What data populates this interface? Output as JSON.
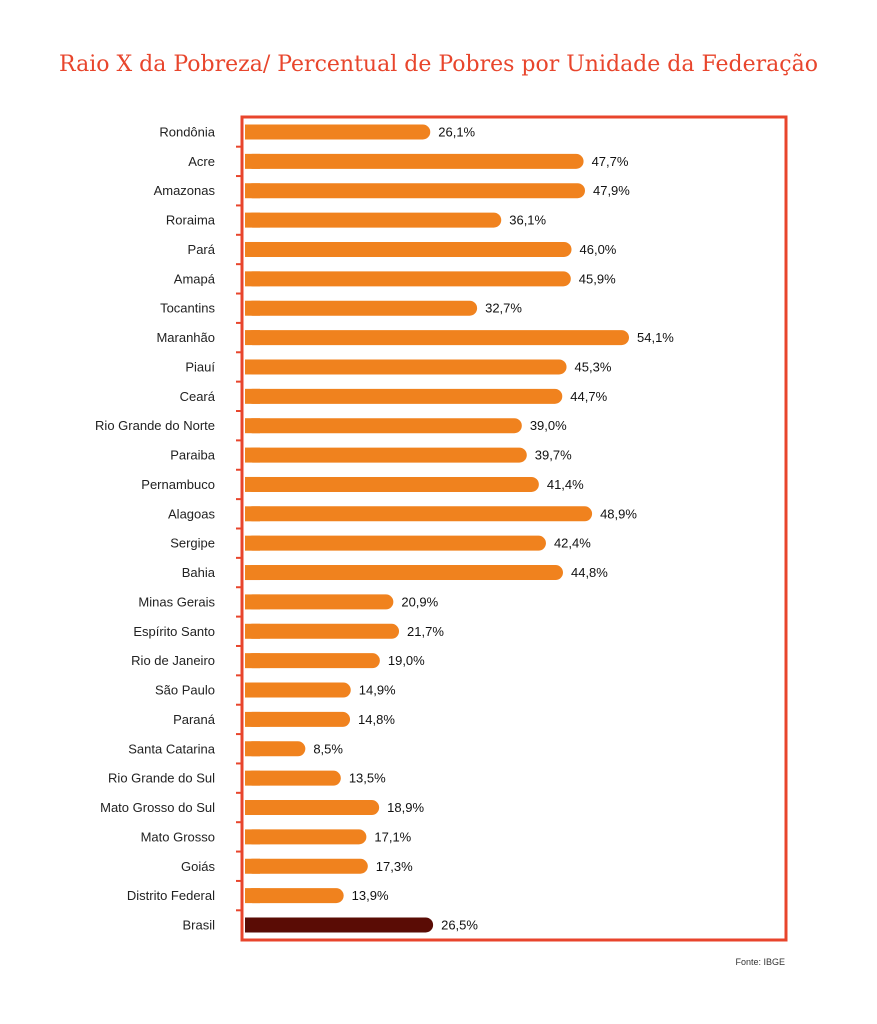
{
  "chart_data": {
    "type": "bar",
    "orientation": "horizontal",
    "title": "Raio X da Pobreza/ Percentual de Pobres por Unidade da Federação",
    "categories": [
      "Rondônia",
      "Acre",
      "Amazonas",
      "Roraima",
      "Pará",
      "Amapá",
      "Tocantins",
      "Maranhão",
      "Piauí",
      "Ceará",
      "Rio Grande do Norte",
      "Paraiba",
      "Pernambuco",
      "Alagoas",
      "Sergipe",
      "Bahia",
      "Minas Gerais",
      "Espírito Santo",
      "Rio de Janeiro",
      "São Paulo",
      "Paraná",
      "Santa Catarina",
      "Rio Grande do Sul",
      "Mato Grosso do Sul",
      "Mato Grosso",
      "Goiás",
      "Distrito Federal",
      "Brasil"
    ],
    "values": [
      26.1,
      47.7,
      47.9,
      36.1,
      46.0,
      45.9,
      32.7,
      54.1,
      45.3,
      44.7,
      39.0,
      39.7,
      41.4,
      48.9,
      42.4,
      44.8,
      20.9,
      21.7,
      19.0,
      14.9,
      14.8,
      8.5,
      13.5,
      18.9,
      17.1,
      17.3,
      13.9,
      26.5
    ],
    "value_labels": [
      "26,1%",
      "47,7%",
      "47,9%",
      "36,1%",
      "46,0%",
      "45,9%",
      "32,7%",
      "54,1%",
      "45,3%",
      "44,7%",
      "39,0%",
      "39,7%",
      "41,4%",
      "48,9%",
      "42,4%",
      "44,8%",
      "20,9%",
      "21,7%",
      "19,0%",
      "14,9%",
      "14,8%",
      "8,5%",
      "13,5%",
      "18,9%",
      "17,1%",
      "17,3%",
      "13,9%",
      "26,5%"
    ],
    "xlim": [
      0,
      60
    ],
    "grid": false,
    "colors": {
      "bar": "#f0821e",
      "highlight_bar": "#5a0c05",
      "frame": "#e8452c",
      "title": "#e8452c"
    },
    "highlight_category": "Brasil"
  },
  "source": "Fonte: IBGE"
}
